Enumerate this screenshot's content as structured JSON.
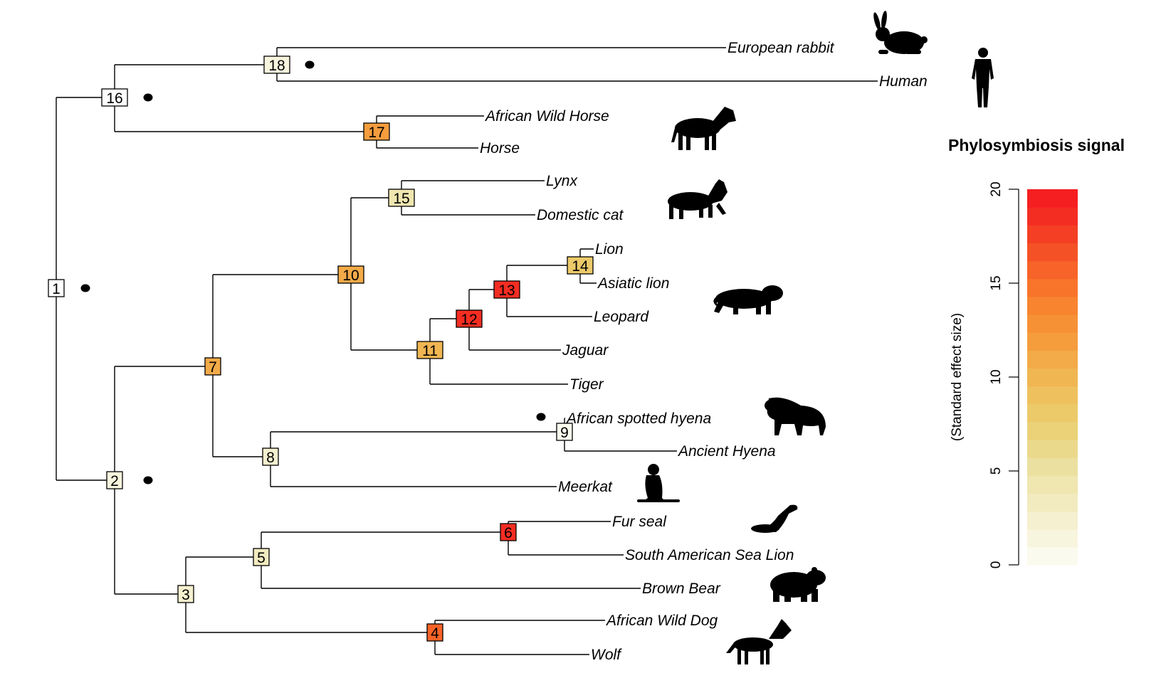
{
  "legend": {
    "title": "Phylosymbiosis signal",
    "axis_label": "(Standard effect size)",
    "ticks": [
      0,
      5,
      10,
      15,
      20
    ],
    "min": 0,
    "max": 20,
    "colors": [
      "#fbfaee",
      "#f8f5de",
      "#f5f0cf",
      "#f2ebbf",
      "#efe6b0",
      "#ece0a0",
      "#ebd98b",
      "#ebd278",
      "#ecca6a",
      "#eec15e",
      "#f0b652",
      "#f3aa48",
      "#f59d3d",
      "#f79135",
      "#f8842f",
      "#f8742b",
      "#f76328",
      "#f55126",
      "#f43f24",
      "#f42d22",
      "#f51e20"
    ]
  },
  "tips": [
    {
      "id": "european-rabbit",
      "label": "European rabbit"
    },
    {
      "id": "human",
      "label": "Human"
    },
    {
      "id": "african-wild-horse",
      "label": "African Wild Horse"
    },
    {
      "id": "horse",
      "label": "Horse"
    },
    {
      "id": "lynx",
      "label": "Lynx"
    },
    {
      "id": "domestic-cat",
      "label": "Domestic cat"
    },
    {
      "id": "lion",
      "label": "Lion"
    },
    {
      "id": "asiatic-lion",
      "label": "Asiatic lion"
    },
    {
      "id": "leopard",
      "label": "Leopard"
    },
    {
      "id": "jaguar",
      "label": "Jaguar"
    },
    {
      "id": "tiger",
      "label": "Tiger"
    },
    {
      "id": "african-spotted-hyena",
      "label": "African spotted hyena"
    },
    {
      "id": "ancient-hyena",
      "label": "Ancient Hyena"
    },
    {
      "id": "meerkat",
      "label": "Meerkat"
    },
    {
      "id": "fur-seal",
      "label": "Fur seal"
    },
    {
      "id": "south-american-sea-lion",
      "label": "South American Sea Lion"
    },
    {
      "id": "brown-bear",
      "label": "Brown Bear"
    },
    {
      "id": "african-wild-dog",
      "label": "African Wild Dog"
    },
    {
      "id": "wolf",
      "label": "Wolf"
    }
  ],
  "nodes": [
    {
      "label": "1",
      "signal": 0,
      "color": "#ffffff",
      "marked": true
    },
    {
      "label": "2",
      "signal": 2,
      "color": "#f8f5de",
      "marked": true
    },
    {
      "label": "3",
      "signal": 3,
      "color": "#f5f0cf",
      "marked": false
    },
    {
      "label": "4",
      "signal": 17,
      "color": "#f76328",
      "marked": false
    },
    {
      "label": "5",
      "signal": 5,
      "color": "#f2ebbf",
      "marked": false
    },
    {
      "label": "6",
      "signal": 20,
      "color": "#f42d22",
      "marked": false
    },
    {
      "label": "7",
      "signal": 13,
      "color": "#f3aa48",
      "marked": false
    },
    {
      "label": "8",
      "signal": 3,
      "color": "#f5f0cf",
      "marked": false
    },
    {
      "label": "9",
      "signal": 1,
      "color": "#fbfaee",
      "marked": true
    },
    {
      "label": "10",
      "signal": 13,
      "color": "#f3aa48",
      "marked": false
    },
    {
      "label": "11",
      "signal": 12,
      "color": "#f0b652",
      "marked": false
    },
    {
      "label": "12",
      "signal": 20,
      "color": "#f42d22",
      "marked": false
    },
    {
      "label": "13",
      "signal": 20,
      "color": "#f42d22",
      "marked": false
    },
    {
      "label": "14",
      "signal": 9,
      "color": "#ecca6a",
      "marked": false
    },
    {
      "label": "15",
      "signal": 6,
      "color": "#efe6b0",
      "marked": false
    },
    {
      "label": "16",
      "signal": 0,
      "color": "#ffffff",
      "marked": true
    },
    {
      "label": "17",
      "signal": 14,
      "color": "#f59d3d",
      "marked": false
    },
    {
      "label": "18",
      "signal": 2,
      "color": "#f8f5de",
      "marked": true
    }
  ],
  "silhouettes": [
    {
      "name": "rabbit-silhouette-icon"
    },
    {
      "name": "human-silhouette-icon"
    },
    {
      "name": "zebra-silhouette-icon"
    },
    {
      "name": "lynx-silhouette-icon"
    },
    {
      "name": "big-cat-silhouette-icon"
    },
    {
      "name": "hyena-silhouette-icon"
    },
    {
      "name": "meerkat-silhouette-icon"
    },
    {
      "name": "sea-lion-silhouette-icon"
    },
    {
      "name": "bear-silhouette-icon"
    },
    {
      "name": "wild-dog-silhouette-icon"
    }
  ]
}
